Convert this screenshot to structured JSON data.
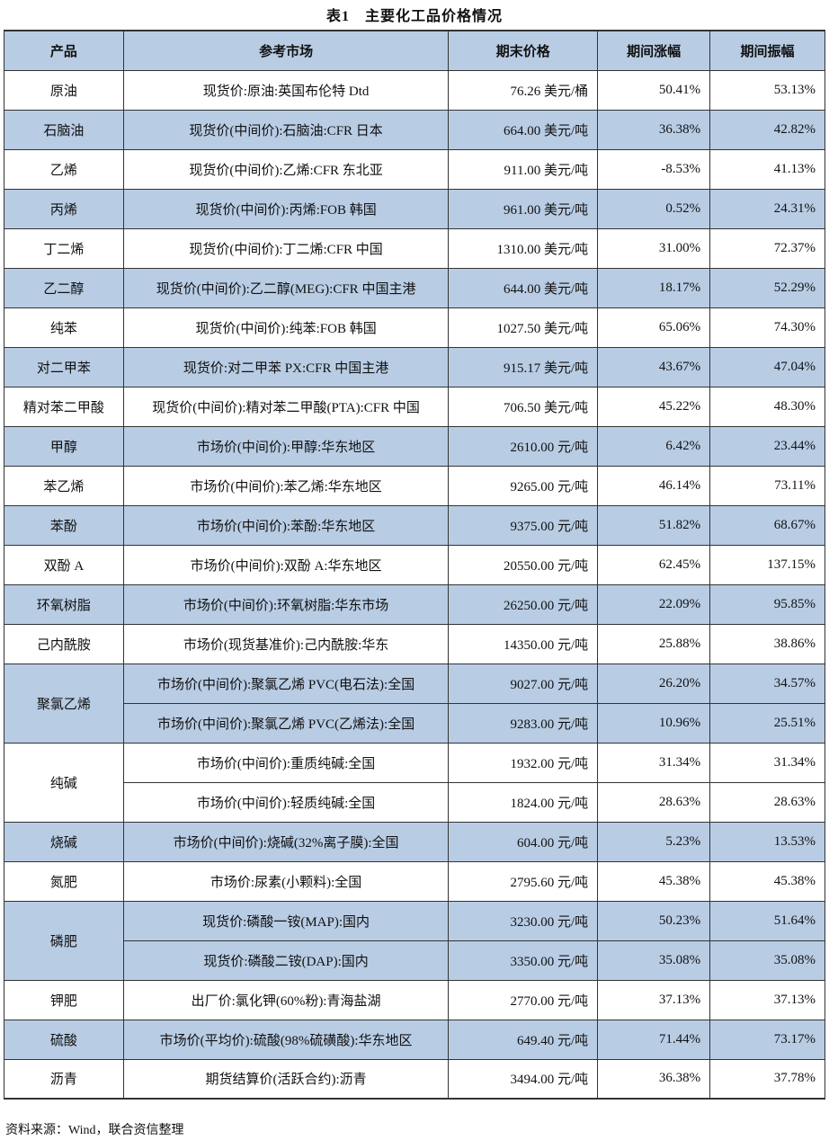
{
  "title": "表1　主要化工品价格情况",
  "headers": [
    "产品",
    "参考市场",
    "期末价格",
    "期间涨幅",
    "期间振幅"
  ],
  "colors": {
    "header_bg": "#b8cce4",
    "stripe_bg": "#b8cce4"
  },
  "groups": [
    {
      "product": "原油",
      "items": [
        {
          "market": "现货价:原油:英国布伦特 Dtd",
          "price": "76.26 美元/桶",
          "change": "50.41%",
          "amplitude": "53.13%"
        }
      ]
    },
    {
      "product": "石脑油",
      "items": [
        {
          "market": "现货价(中间价):石脑油:CFR 日本",
          "price": "664.00 美元/吨",
          "change": "36.38%",
          "amplitude": "42.82%"
        }
      ]
    },
    {
      "product": "乙烯",
      "items": [
        {
          "market": "现货价(中间价):乙烯:CFR 东北亚",
          "price": "911.00 美元/吨",
          "change": "-8.53%",
          "amplitude": "41.13%"
        }
      ]
    },
    {
      "product": "丙烯",
      "items": [
        {
          "market": "现货价(中间价):丙烯:FOB 韩国",
          "price": "961.00 美元/吨",
          "change": "0.52%",
          "amplitude": "24.31%"
        }
      ]
    },
    {
      "product": "丁二烯",
      "items": [
        {
          "market": "现货价(中间价):丁二烯:CFR 中国",
          "price": "1310.00 美元/吨",
          "change": "31.00%",
          "amplitude": "72.37%"
        }
      ]
    },
    {
      "product": "乙二醇",
      "items": [
        {
          "market": "现货价(中间价):乙二醇(MEG):CFR 中国主港",
          "price": "644.00 美元/吨",
          "change": "18.17%",
          "amplitude": "52.29%"
        }
      ]
    },
    {
      "product": "纯苯",
      "items": [
        {
          "market": "现货价(中间价):纯苯:FOB 韩国",
          "price": "1027.50 美元/吨",
          "change": "65.06%",
          "amplitude": "74.30%"
        }
      ]
    },
    {
      "product": "对二甲苯",
      "items": [
        {
          "market": "现货价:对二甲苯 PX:CFR 中国主港",
          "price": "915.17 美元/吨",
          "change": "43.67%",
          "amplitude": "47.04%"
        }
      ]
    },
    {
      "product": "精对苯二甲酸",
      "items": [
        {
          "market": "现货价(中间价):精对苯二甲酸(PTA):CFR 中国",
          "price": "706.50 美元/吨",
          "change": "45.22%",
          "amplitude": "48.30%"
        }
      ]
    },
    {
      "product": "甲醇",
      "items": [
        {
          "market": "市场价(中间价):甲醇:华东地区",
          "price": "2610.00 元/吨",
          "change": "6.42%",
          "amplitude": "23.44%"
        }
      ]
    },
    {
      "product": "苯乙烯",
      "items": [
        {
          "market": "市场价(中间价):苯乙烯:华东地区",
          "price": "9265.00 元/吨",
          "change": "46.14%",
          "amplitude": "73.11%"
        }
      ]
    },
    {
      "product": "苯酚",
      "items": [
        {
          "market": "市场价(中间价):苯酚:华东地区",
          "price": "9375.00 元/吨",
          "change": "51.82%",
          "amplitude": "68.67%"
        }
      ]
    },
    {
      "product": "双酚 A",
      "items": [
        {
          "market": "市场价(中间价):双酚 A:华东地区",
          "price": "20550.00 元/吨",
          "change": "62.45%",
          "amplitude": "137.15%"
        }
      ]
    },
    {
      "product": "环氧树脂",
      "items": [
        {
          "market": "市场价(中间价):环氧树脂:华东市场",
          "price": "26250.00 元/吨",
          "change": "22.09%",
          "amplitude": "95.85%"
        }
      ]
    },
    {
      "product": "己内酰胺",
      "items": [
        {
          "market": "市场价(现货基准价):己内酰胺:华东",
          "price": "14350.00 元/吨",
          "change": "25.88%",
          "amplitude": "38.86%"
        }
      ]
    },
    {
      "product": "聚氯乙烯",
      "items": [
        {
          "market": "市场价(中间价):聚氯乙烯 PVC(电石法):全国",
          "price": "9027.00 元/吨",
          "change": "26.20%",
          "amplitude": "34.57%"
        },
        {
          "market": "市场价(中间价):聚氯乙烯 PVC(乙烯法):全国",
          "price": "9283.00 元/吨",
          "change": "10.96%",
          "amplitude": "25.51%"
        }
      ]
    },
    {
      "product": "纯碱",
      "items": [
        {
          "market": "市场价(中间价):重质纯碱:全国",
          "price": "1932.00 元/吨",
          "change": "31.34%",
          "amplitude": "31.34%"
        },
        {
          "market": "市场价(中间价):轻质纯碱:全国",
          "price": "1824.00 元/吨",
          "change": "28.63%",
          "amplitude": "28.63%"
        }
      ]
    },
    {
      "product": "烧碱",
      "items": [
        {
          "market": "市场价(中间价):烧碱(32%离子膜):全国",
          "price": "604.00 元/吨",
          "change": "5.23%",
          "amplitude": "13.53%"
        }
      ]
    },
    {
      "product": "氮肥",
      "items": [
        {
          "market": "市场价:尿素(小颗料):全国",
          "price": "2795.60 元/吨",
          "change": "45.38%",
          "amplitude": "45.38%"
        }
      ]
    },
    {
      "product": "磷肥",
      "items": [
        {
          "market": "现货价:磷酸一铵(MAP):国内",
          "price": "3230.00 元/吨",
          "change": "50.23%",
          "amplitude": "51.64%"
        },
        {
          "market": "现货价:磷酸二铵(DAP):国内",
          "price": "3350.00 元/吨",
          "change": "35.08%",
          "amplitude": "35.08%"
        }
      ]
    },
    {
      "product": "钾肥",
      "items": [
        {
          "market": "出厂价:氯化钾(60%粉):青海盐湖",
          "price": "2770.00 元/吨",
          "change": "37.13%",
          "amplitude": "37.13%"
        }
      ]
    },
    {
      "product": "硫酸",
      "items": [
        {
          "market": "市场价(平均价):硫酸(98%硫磺酸):华东地区",
          "price": "649.40 元/吨",
          "change": "71.44%",
          "amplitude": "73.17%"
        }
      ]
    },
    {
      "product": "沥青",
      "items": [
        {
          "market": "期货结算价(活跃合约):沥青",
          "price": "3494.00 元/吨",
          "change": "36.38%",
          "amplitude": "37.78%"
        }
      ]
    }
  ],
  "source": "资料来源：Wind，联合资信整理"
}
